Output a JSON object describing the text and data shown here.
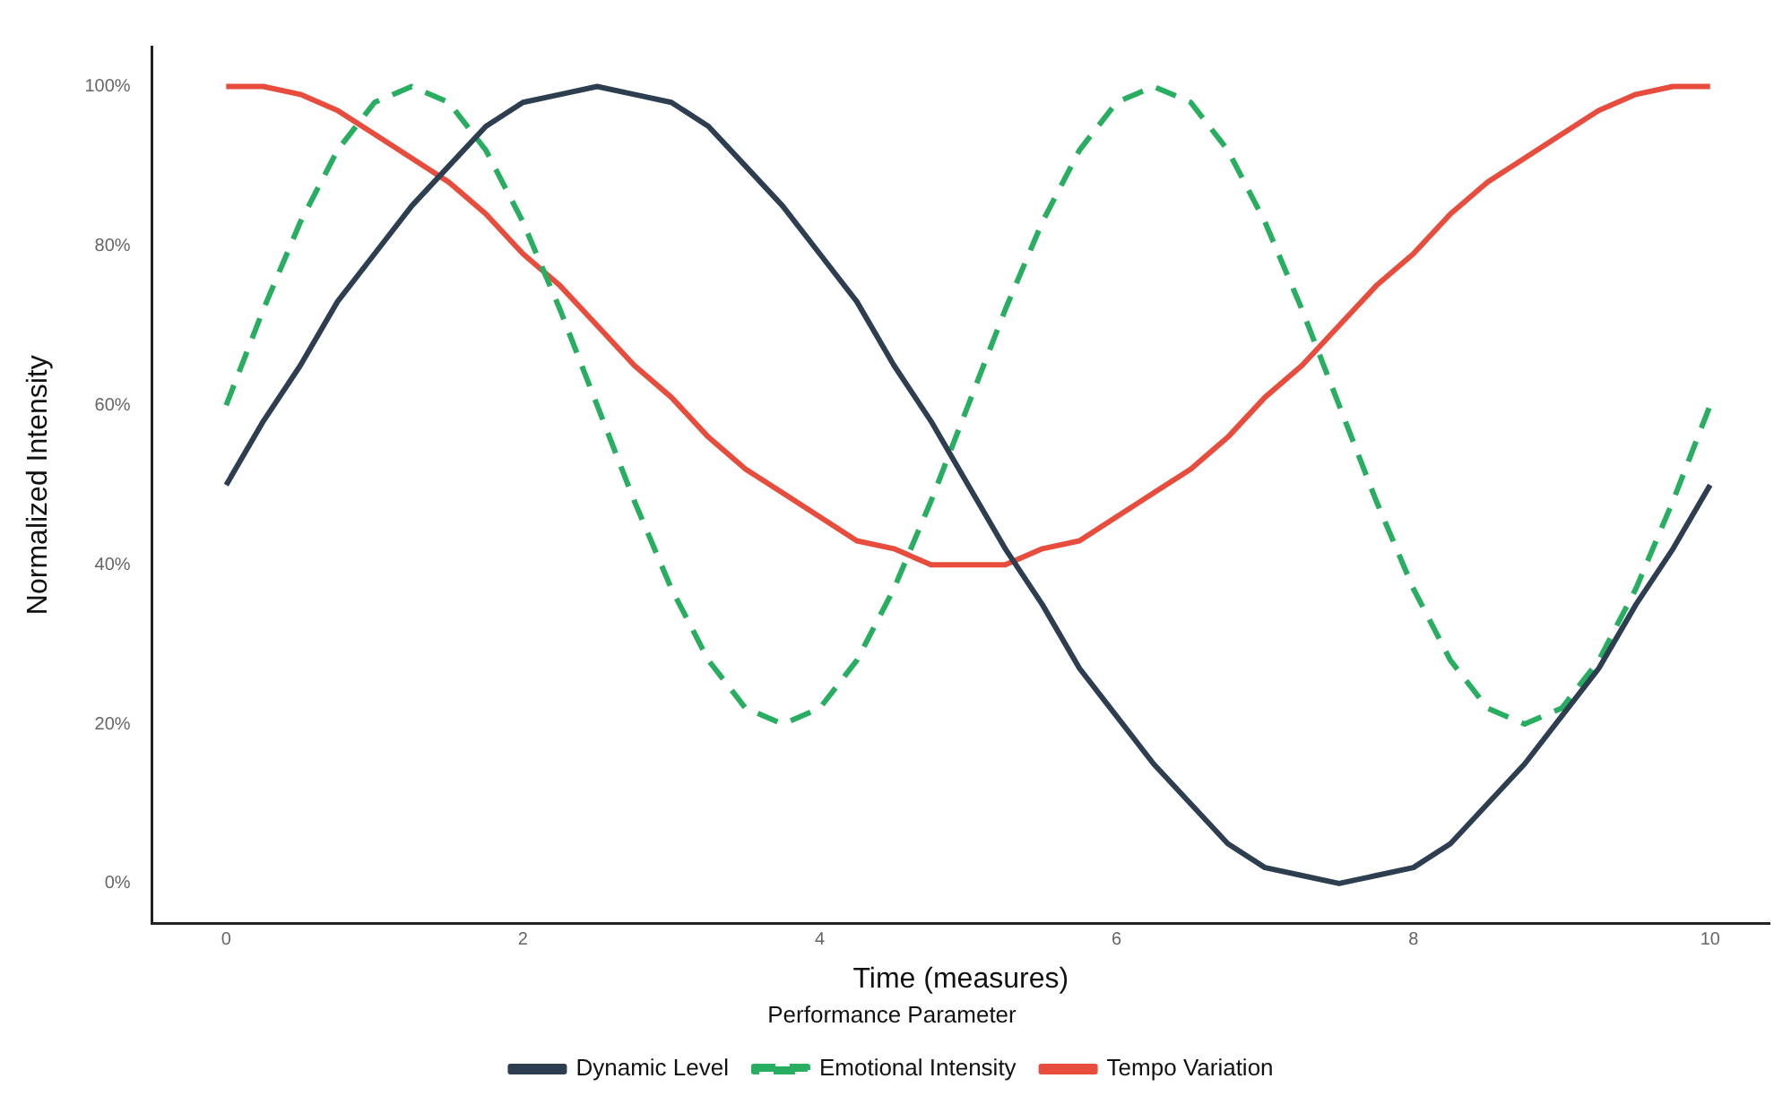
{
  "chart_data": {
    "type": "line",
    "xlabel": "Time (measures)",
    "ylabel": "Normalized Intensity",
    "legend_title": "Performance Parameter",
    "legend": "bottom",
    "marker": "none",
    "x": [
      0,
      0.25,
      0.5,
      0.75,
      1,
      1.25,
      1.5,
      1.75,
      2,
      2.25,
      2.5,
      2.75,
      3,
      3.25,
      3.5,
      3.75,
      4,
      4.25,
      4.5,
      4.75,
      5,
      5.25,
      5.5,
      5.75,
      6,
      6.25,
      6.5,
      6.75,
      7,
      7.25,
      7.5,
      7.75,
      8,
      8.25,
      8.5,
      8.75,
      9,
      9.25,
      9.5,
      9.75,
      10
    ],
    "xlim": [
      -0.5,
      10.4
    ],
    "xticks": [
      0,
      2,
      4,
      6,
      8,
      10
    ],
    "ylim": [
      -5,
      105
    ],
    "yticks": [
      {
        "value": 0,
        "label": "0%"
      },
      {
        "value": 20,
        "label": "20%"
      },
      {
        "value": 40,
        "label": "40%"
      },
      {
        "value": 60,
        "label": "60%"
      },
      {
        "value": 80,
        "label": "80%"
      },
      {
        "value": 100,
        "label": "100%"
      }
    ],
    "series": [
      {
        "name": "Dynamic Level",
        "color": "#2c3e50",
        "line_style": "solid",
        "values": [
          50,
          58,
          65,
          73,
          79,
          85,
          90,
          95,
          98,
          99,
          100,
          99,
          98,
          95,
          90,
          85,
          79,
          73,
          65,
          58,
          50,
          42,
          35,
          27,
          21,
          15,
          10,
          5,
          2,
          1,
          0,
          1,
          2,
          5,
          10,
          15,
          21,
          27,
          35,
          42,
          50
        ]
      },
      {
        "name": "Emotional Intensity",
        "color": "#27ae60",
        "line_style": "dashed",
        "values": [
          60,
          72,
          83,
          92,
          98,
          100,
          98,
          92,
          83,
          72,
          60,
          48,
          37,
          28,
          22,
          20,
          22,
          28,
          37,
          48,
          60,
          72,
          83,
          92,
          98,
          100,
          98,
          92,
          83,
          72,
          60,
          48,
          37,
          28,
          22,
          20,
          22,
          28,
          37,
          48,
          60
        ]
      },
      {
        "name": "Tempo Variation",
        "color": "#e74c3c",
        "line_style": "solid",
        "values": [
          100,
          100,
          99,
          97,
          94,
          91,
          88,
          84,
          79,
          75,
          70,
          65,
          61,
          56,
          52,
          49,
          46,
          43,
          42,
          40,
          40,
          40,
          42,
          43,
          46,
          49,
          52,
          56,
          61,
          65,
          70,
          75,
          79,
          84,
          88,
          91,
          94,
          97,
          99,
          100,
          100
        ]
      }
    ]
  }
}
